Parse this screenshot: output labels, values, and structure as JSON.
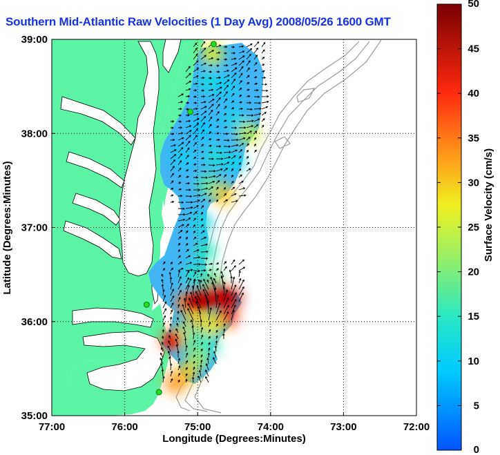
{
  "chart_data": {
    "type": "heatmap",
    "title": "Southern Mid-Atlantic Raw Velocities (1 Day Avg) 2008/05/26 1600 GMT",
    "xlabel": "Longitude (Degrees:Minutes)",
    "ylabel": "Latitude (Degrees:Minutes)",
    "colorbar_label": "Surface Velocity (cm/s)",
    "xlim": [
      -77,
      -72
    ],
    "ylim": [
      35,
      39
    ],
    "x_ticks": [
      {
        "value": -77,
        "label": "77:00"
      },
      {
        "value": -76,
        "label": "76:00"
      },
      {
        "value": -75,
        "label": "75:00"
      },
      {
        "value": -74,
        "label": "74:00"
      },
      {
        "value": -73,
        "label": "73:00"
      },
      {
        "value": -72,
        "label": "72:00"
      }
    ],
    "y_ticks": [
      {
        "value": 35,
        "label": "35:00"
      },
      {
        "value": 36,
        "label": "36:00"
      },
      {
        "value": 37,
        "label": "37:00"
      },
      {
        "value": 38,
        "label": "38:00"
      },
      {
        "value": 39,
        "label": "39:00"
      }
    ],
    "colorbar": {
      "range": [
        0,
        50
      ],
      "ticks": [
        {
          "value": 0,
          "label": "0"
        },
        {
          "value": 5,
          "label": "5"
        },
        {
          "value": 10,
          "label": "10"
        },
        {
          "value": 15,
          "label": "15"
        },
        {
          "value": 20,
          "label": "20"
        },
        {
          "value": 25,
          "label": "25"
        },
        {
          "value": 30,
          "label": "30"
        },
        {
          "value": 35,
          "label": "35"
        },
        {
          "value": 40,
          "label": "40"
        },
        {
          "value": 45,
          "label": "45"
        },
        {
          "value": 50,
          "label": "50"
        }
      ]
    },
    "grid": true,
    "grid_style": "dotted",
    "colors": {
      "land": "#5cf4a6",
      "water": "#ffffff",
      "bathymetry": "#9a9a9a",
      "station": "#22dd22",
      "title": "#1433e6"
    },
    "stations": [
      {
        "lon": -74.78,
        "lat": 38.95
      },
      {
        "lon": -75.1,
        "lat": 38.23
      },
      {
        "lon": -75.7,
        "lat": 36.18
      },
      {
        "lon": -75.53,
        "lat": 35.25
      }
    ],
    "speed_field": [
      {
        "lon": -74.85,
        "lat": 38.55,
        "speed": 12
      },
      {
        "lon": -74.6,
        "lat": 38.5,
        "speed": 10
      },
      {
        "lon": -74.5,
        "lat": 38.15,
        "speed": 11
      },
      {
        "lon": -74.95,
        "lat": 38.05,
        "speed": 9
      },
      {
        "lon": -75.2,
        "lat": 37.75,
        "speed": 10
      },
      {
        "lon": -74.75,
        "lat": 37.75,
        "speed": 13
      },
      {
        "lon": -74.5,
        "lat": 37.7,
        "speed": 11
      },
      {
        "lon": -74.85,
        "lat": 37.45,
        "speed": 18
      },
      {
        "lon": -74.65,
        "lat": 37.35,
        "speed": 30
      },
      {
        "lon": -74.8,
        "lat": 38.85,
        "speed": 27
      },
      {
        "lon": -74.3,
        "lat": 38.0,
        "speed": 25
      },
      {
        "lon": -74.95,
        "lat": 37.05,
        "speed": 12
      },
      {
        "lon": -74.9,
        "lat": 36.75,
        "speed": 15
      },
      {
        "lon": -75.05,
        "lat": 36.5,
        "speed": 14
      },
      {
        "lon": -74.8,
        "lat": 36.45,
        "speed": 18
      },
      {
        "lon": -74.75,
        "lat": 36.3,
        "speed": 42
      },
      {
        "lon": -74.95,
        "lat": 36.25,
        "speed": 47
      },
      {
        "lon": -74.55,
        "lat": 36.25,
        "speed": 45
      },
      {
        "lon": -75.15,
        "lat": 36.2,
        "speed": 36
      },
      {
        "lon": -74.6,
        "lat": 36.05,
        "speed": 40
      },
      {
        "lon": -75.0,
        "lat": 36.05,
        "speed": 30
      },
      {
        "lon": -74.8,
        "lat": 35.95,
        "speed": 28
      },
      {
        "lon": -75.2,
        "lat": 35.85,
        "speed": 27
      },
      {
        "lon": -75.35,
        "lat": 35.8,
        "speed": 38
      },
      {
        "lon": -75.05,
        "lat": 35.8,
        "speed": 18
      },
      {
        "lon": -74.85,
        "lat": 35.75,
        "speed": 15
      },
      {
        "lon": -75.0,
        "lat": 35.6,
        "speed": 22
      },
      {
        "lon": -75.15,
        "lat": 35.45,
        "speed": 30
      },
      {
        "lon": -75.3,
        "lat": 35.35,
        "speed": 33
      }
    ]
  }
}
